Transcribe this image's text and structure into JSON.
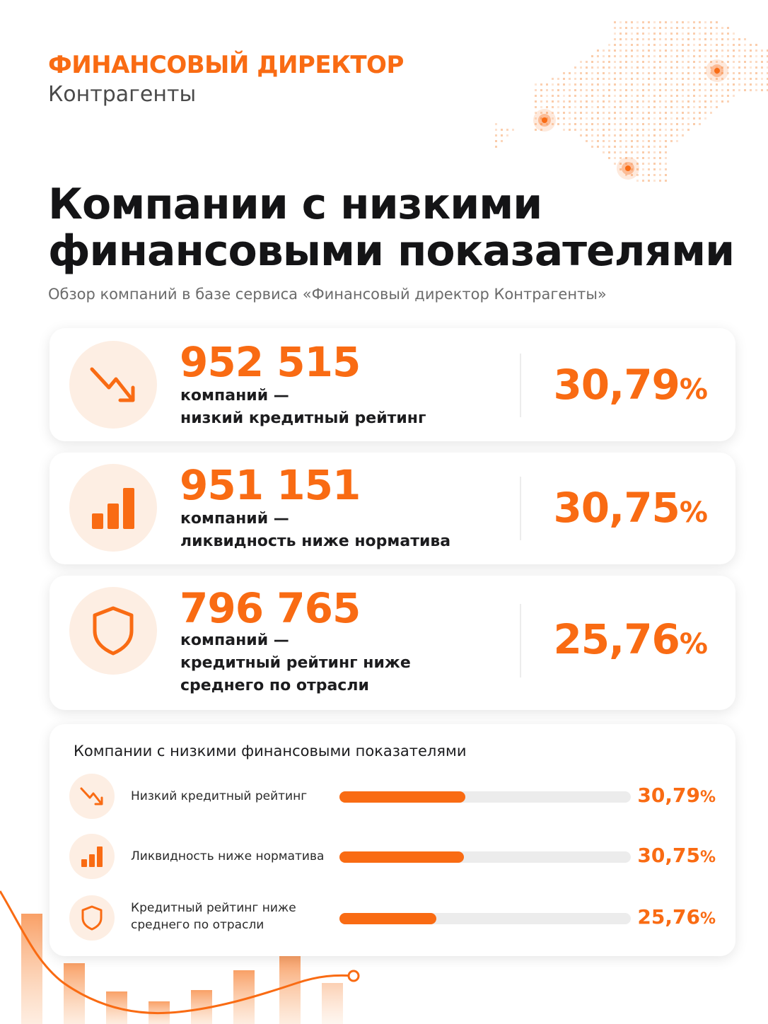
{
  "brand": {
    "title": "ФИНАНСОВЫЙ ДИРЕКТОР",
    "subtitle": "Контрагенты",
    "accent_color": "#f96b13"
  },
  "headline": {
    "line1": "Компании с низкими",
    "line2": "финансовыми показателями"
  },
  "subtitle": "Обзор компаний в базе сервиса «Финансовый директор Контрагенты»",
  "cards": [
    {
      "icon": "trend-down-icon",
      "value": "952 515",
      "desc_line1": "компаний —",
      "desc_line2": "низкий кредитный рейтинг",
      "desc_line3": "",
      "percent": "30,79",
      "percent_sign": "%"
    },
    {
      "icon": "bar-chart-icon",
      "value": "951 151",
      "desc_line1": "компаний —",
      "desc_line2": "ликвидность ниже норматива",
      "desc_line3": "",
      "percent": "30,75",
      "percent_sign": "%"
    },
    {
      "icon": "shield-icon",
      "value": "796 765",
      "desc_line1": "компаний —",
      "desc_line2": "кредитный рейтинг ниже",
      "desc_line3": "среднего по отрасли",
      "percent": "25,76",
      "percent_sign": "%"
    }
  ],
  "summary": {
    "title": "Компании с низкими финансовыми показателями",
    "rows": [
      {
        "icon": "trend-down-icon",
        "label_line1": "Низкий кредитный рейтинг",
        "label_line2": "",
        "percent": "30,79",
        "percent_sign": "%",
        "fill_fraction": 0.4329
      },
      {
        "icon": "bar-chart-icon",
        "label_line1": "Ликвидность ниже норматива",
        "label_line2": "",
        "percent": "30,75",
        "percent_sign": "%",
        "fill_fraction": 0.4271
      },
      {
        "icon": "shield-icon",
        "label_line1": "Кредитный рейтинг ниже",
        "label_line2": "среднего по отрасли",
        "percent": "25,76",
        "percent_sign": "%",
        "fill_fraction": 0.3333
      }
    ]
  }
}
